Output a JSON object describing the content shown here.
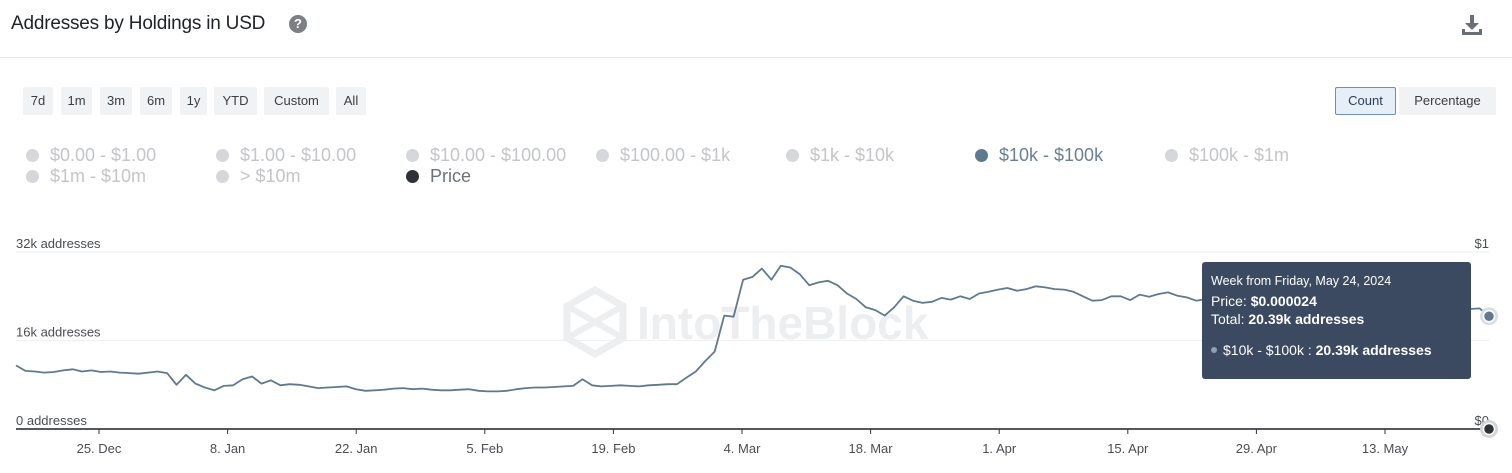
{
  "header": {
    "title": "Addresses by Holdings in USD",
    "help_icon": "question-circle-icon",
    "download_icon": "download-icon"
  },
  "range_buttons": [
    "7d",
    "1m",
    "3m",
    "6m",
    "1y",
    "YTD",
    "Custom",
    "All"
  ],
  "mode_buttons": [
    {
      "label": "Count",
      "active": true
    },
    {
      "label": "Percentage",
      "active": false
    }
  ],
  "legend": [
    {
      "label": "$0.00 - $1.00",
      "active": false
    },
    {
      "label": "$1.00 - $10.00",
      "active": false
    },
    {
      "label": "$10.00 - $100.00",
      "active": false
    },
    {
      "label": "$100.00 - $1k",
      "active": false
    },
    {
      "label": "$1k - $10k",
      "active": false
    },
    {
      "label": "$10k - $100k",
      "active": true
    },
    {
      "label": "$100k - $1m",
      "active": false
    },
    {
      "label": "$1m - $10m",
      "active": false
    },
    {
      "label": "> $10m",
      "active": false
    },
    {
      "label": "Price",
      "active": true
    }
  ],
  "watermark": "IntoTheBlock",
  "colors": {
    "series": "#5f7a8e",
    "price": "#2e3136",
    "tooltip_bg": "#3b4a60",
    "active_mode": "#6a8fc0"
  },
  "tooltip": {
    "title": "Week from Friday, May 24, 2024",
    "price_label": "Price:",
    "price_value": "$0.000024",
    "total_label": "Total:",
    "total_value": "20.39k addresses",
    "series_label": "$10k - $100k :",
    "series_value": "20.39k addresses"
  },
  "chart_data": {
    "type": "line",
    "title": "Addresses by Holdings in USD",
    "x_ticks": [
      "25. Dec",
      "8. Jan",
      "22. Jan",
      "5. Feb",
      "19. Feb",
      "4. Mar",
      "18. Mar",
      "1. Apr",
      "15. Apr",
      "29. Apr",
      "13. May"
    ],
    "y_left": {
      "ticks": [
        "0 addresses",
        "16k addresses",
        "32k addresses"
      ],
      "range": [
        0,
        32000
      ]
    },
    "y_right": {
      "ticks": [
        "$0",
        "$1"
      ],
      "range": [
        0,
        1
      ]
    },
    "grid": true,
    "series": [
      {
        "name": "$10k - $100k",
        "axis": "left",
        "values": [
          11500,
          10500,
          10400,
          10200,
          10300,
          10600,
          10800,
          10400,
          10600,
          10300,
          10400,
          10200,
          10100,
          10000,
          10200,
          10400,
          10100,
          8000,
          9800,
          8200,
          7500,
          7000,
          7800,
          7900,
          9000,
          9500,
          8200,
          8800,
          7900,
          8100,
          8000,
          7700,
          7400,
          7500,
          7600,
          7700,
          7200,
          6900,
          7000,
          7100,
          7300,
          7400,
          7200,
          7300,
          7100,
          7000,
          7000,
          7100,
          7200,
          6900,
          6800,
          6800,
          6900,
          7200,
          7400,
          7500,
          7500,
          7600,
          7700,
          7800,
          9000,
          7900,
          7700,
          7800,
          7900,
          7800,
          7700,
          7900,
          8000,
          8100,
          8100,
          9300,
          10400,
          12300,
          14000,
          20500,
          20300,
          27000,
          27500,
          29000,
          27000,
          29500,
          29200,
          28000,
          26000,
          26500,
          26800,
          26000,
          24500,
          23500,
          22000,
          21500,
          20500,
          22000,
          24000,
          23200,
          22800,
          23000,
          23700,
          23400,
          24000,
          23500,
          24500,
          24800,
          25200,
          25500,
          25000,
          25300,
          25800,
          25600,
          25300,
          25200,
          24800,
          24000,
          23200,
          23300,
          24000,
          24000,
          23300,
          24300,
          23900,
          24400,
          24700,
          24100,
          23800,
          23200,
          23500,
          21900,
          21500,
          20900,
          21300,
          21300,
          21600,
          21700,
          23200,
          23300,
          23900,
          23700,
          23600,
          24000,
          24100,
          23500,
          23300,
          22900,
          23200,
          22700,
          22500,
          22000,
          21800,
          21700,
          21800,
          21700,
          21600,
          21500,
          21700,
          21800,
          20390
        ]
      },
      {
        "name": "Price",
        "axis": "right",
        "values": [
          2.4e-05,
          2.4e-05
        ]
      }
    ]
  }
}
